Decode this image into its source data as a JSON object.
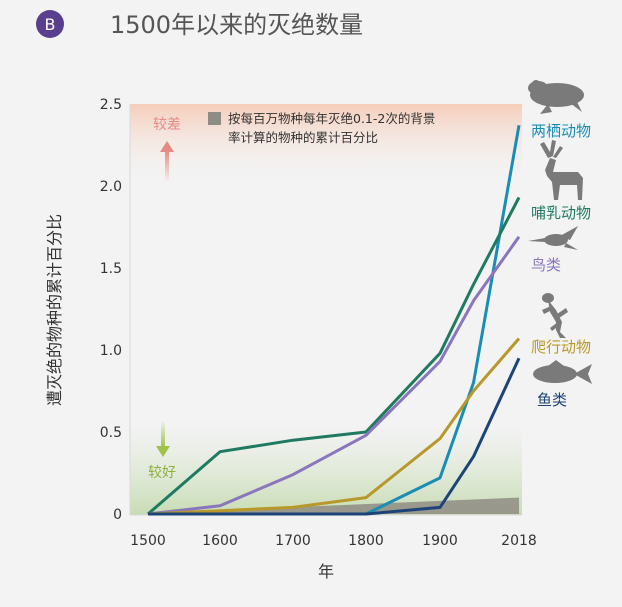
{
  "panel_badge": "B",
  "colors": {
    "badge": "#5b3f8f",
    "title": "#555555",
    "amphibians": "#1a8db5",
    "mammals": "#1f7a62",
    "birds": "#8a76bd",
    "reptiles": "#b8982a",
    "fish": "#1d4478",
    "background_band": "#8f8c85",
    "worse": "#e58a84",
    "better": "#9ec24a"
  },
  "chart_data": {
    "type": "line",
    "title": "1500年以来的灭绝数量",
    "xlabel": "年",
    "ylabel": "遭灭绝的物种的累计百分比",
    "x": [
      1500,
      1600,
      1700,
      1800,
      1900,
      1950,
      2018
    ],
    "xticks": [
      "1500",
      "1600",
      "1700",
      "1800",
      "1900",
      "2018"
    ],
    "yticks": [
      "0",
      "0.5",
      "1.0",
      "1.5",
      "2.0",
      "2.5"
    ],
    "ylim": [
      0,
      2.5
    ],
    "series": [
      {
        "name": "两栖动物",
        "key": "amphibians",
        "values": [
          0,
          0,
          0,
          0,
          0.22,
          0.8,
          2.37
        ]
      },
      {
        "name": "哺乳动物",
        "key": "mammals",
        "values": [
          0,
          0.38,
          0.45,
          0.5,
          0.98,
          1.4,
          1.93
        ]
      },
      {
        "name": "鸟类",
        "key": "birds",
        "values": [
          0,
          0.05,
          0.24,
          0.48,
          0.93,
          1.3,
          1.69
        ]
      },
      {
        "name": "爬行动物",
        "key": "reptiles",
        "values": [
          0,
          0.02,
          0.04,
          0.1,
          0.46,
          0.75,
          1.07
        ]
      },
      {
        "name": "鱼类",
        "key": "fish",
        "values": [
          0,
          0,
          0,
          0,
          0.04,
          0.35,
          0.95
        ]
      }
    ],
    "background_band": {
      "label": "按每百万物种每年灭绝0.1-2次的背景率计算的物种的累计百分比",
      "label_lines": [
        "按每百万物种每年灭绝0.1-2次的背景",
        "率计算的物种的累计百分比"
      ],
      "x": [
        1500,
        2018
      ],
      "upper": [
        0.005,
        0.1
      ]
    },
    "annotations": {
      "worse": "较差",
      "better": "较好"
    },
    "grid": false,
    "legend": "right"
  }
}
